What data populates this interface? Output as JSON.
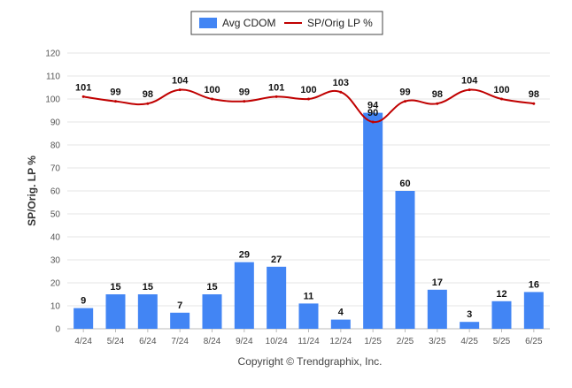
{
  "chart_data": {
    "type": "bar",
    "categories": [
      "4/24",
      "5/24",
      "6/24",
      "7/24",
      "8/24",
      "9/24",
      "10/24",
      "11/24",
      "12/24",
      "1/25",
      "2/25",
      "3/25",
      "4/25",
      "5/25",
      "6/25"
    ],
    "series": [
      {
        "name": "Avg CDOM",
        "type": "bar",
        "color": "#4285f4",
        "values": [
          9,
          15,
          15,
          7,
          15,
          29,
          27,
          11,
          4,
          94,
          60,
          17,
          3,
          12,
          16
        ]
      },
      {
        "name": "SP/Orig LP %",
        "type": "line",
        "color": "#c00000",
        "values": [
          101,
          99,
          98,
          104,
          100,
          99,
          101,
          100,
          103,
          90,
          99,
          98,
          104,
          100,
          98
        ]
      }
    ],
    "ylabel": "SP/Orig. LP %",
    "ylim": [
      0,
      120
    ],
    "yticks": [
      0,
      10,
      20,
      30,
      40,
      50,
      60,
      70,
      80,
      90,
      100,
      110,
      120
    ],
    "grid": true,
    "legend_position": "top-center"
  },
  "credit": "Copyright © Trendgraphix, Inc."
}
